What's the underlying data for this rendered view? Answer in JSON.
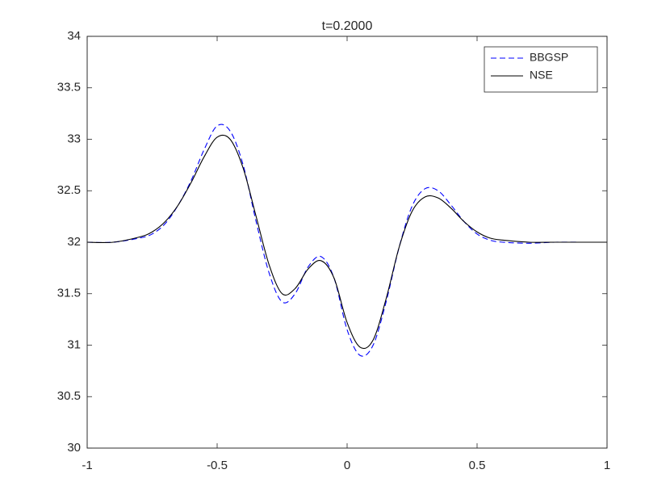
{
  "chart_data": {
    "type": "line",
    "title": "t=0.2000",
    "x": [
      -1,
      -0.9,
      -0.8,
      -0.75,
      -0.7,
      -0.65,
      -0.6,
      -0.55,
      -0.5,
      -0.45,
      -0.4,
      -0.35,
      -0.3,
      -0.25,
      -0.2,
      -0.15,
      -0.1,
      -0.05,
      0,
      0.05,
      0.1,
      0.15,
      0.2,
      0.25,
      0.3,
      0.35,
      0.4,
      0.45,
      0.5,
      0.55,
      0.6,
      0.7,
      0.8,
      0.9,
      1
    ],
    "series": [
      {
        "name": "BBGSP",
        "color": "#0000ff",
        "dash": true,
        "values": [
          32.0,
          32.0,
          32.04,
          32.08,
          32.18,
          32.36,
          32.6,
          32.9,
          33.13,
          33.08,
          32.75,
          32.2,
          31.7,
          31.42,
          31.5,
          31.76,
          31.86,
          31.65,
          31.15,
          30.9,
          31.0,
          31.42,
          31.95,
          32.35,
          32.52,
          32.5,
          32.36,
          32.2,
          32.08,
          32.02,
          32.0,
          31.99,
          32.0,
          32.0,
          32.0
        ]
      },
      {
        "name": "NSE",
        "color": "#000000",
        "dash": false,
        "values": [
          32.0,
          32.0,
          32.05,
          32.1,
          32.2,
          32.36,
          32.58,
          32.83,
          33.02,
          33.0,
          32.72,
          32.25,
          31.78,
          31.5,
          31.55,
          31.74,
          31.82,
          31.65,
          31.22,
          30.98,
          31.05,
          31.45,
          31.95,
          32.3,
          32.44,
          32.43,
          32.33,
          32.2,
          32.1,
          32.04,
          32.02,
          32.0,
          32.0,
          32.0,
          32.0
        ]
      }
    ],
    "xlim": [
      -1,
      1
    ],
    "xticks": [
      -1,
      -0.5,
      0,
      0.5,
      1
    ],
    "ylim": [
      30,
      34
    ],
    "yticks": [
      30,
      30.5,
      31,
      31.5,
      32,
      32.5,
      33,
      33.5,
      34
    ],
    "grid": false,
    "legend": "northeast"
  }
}
